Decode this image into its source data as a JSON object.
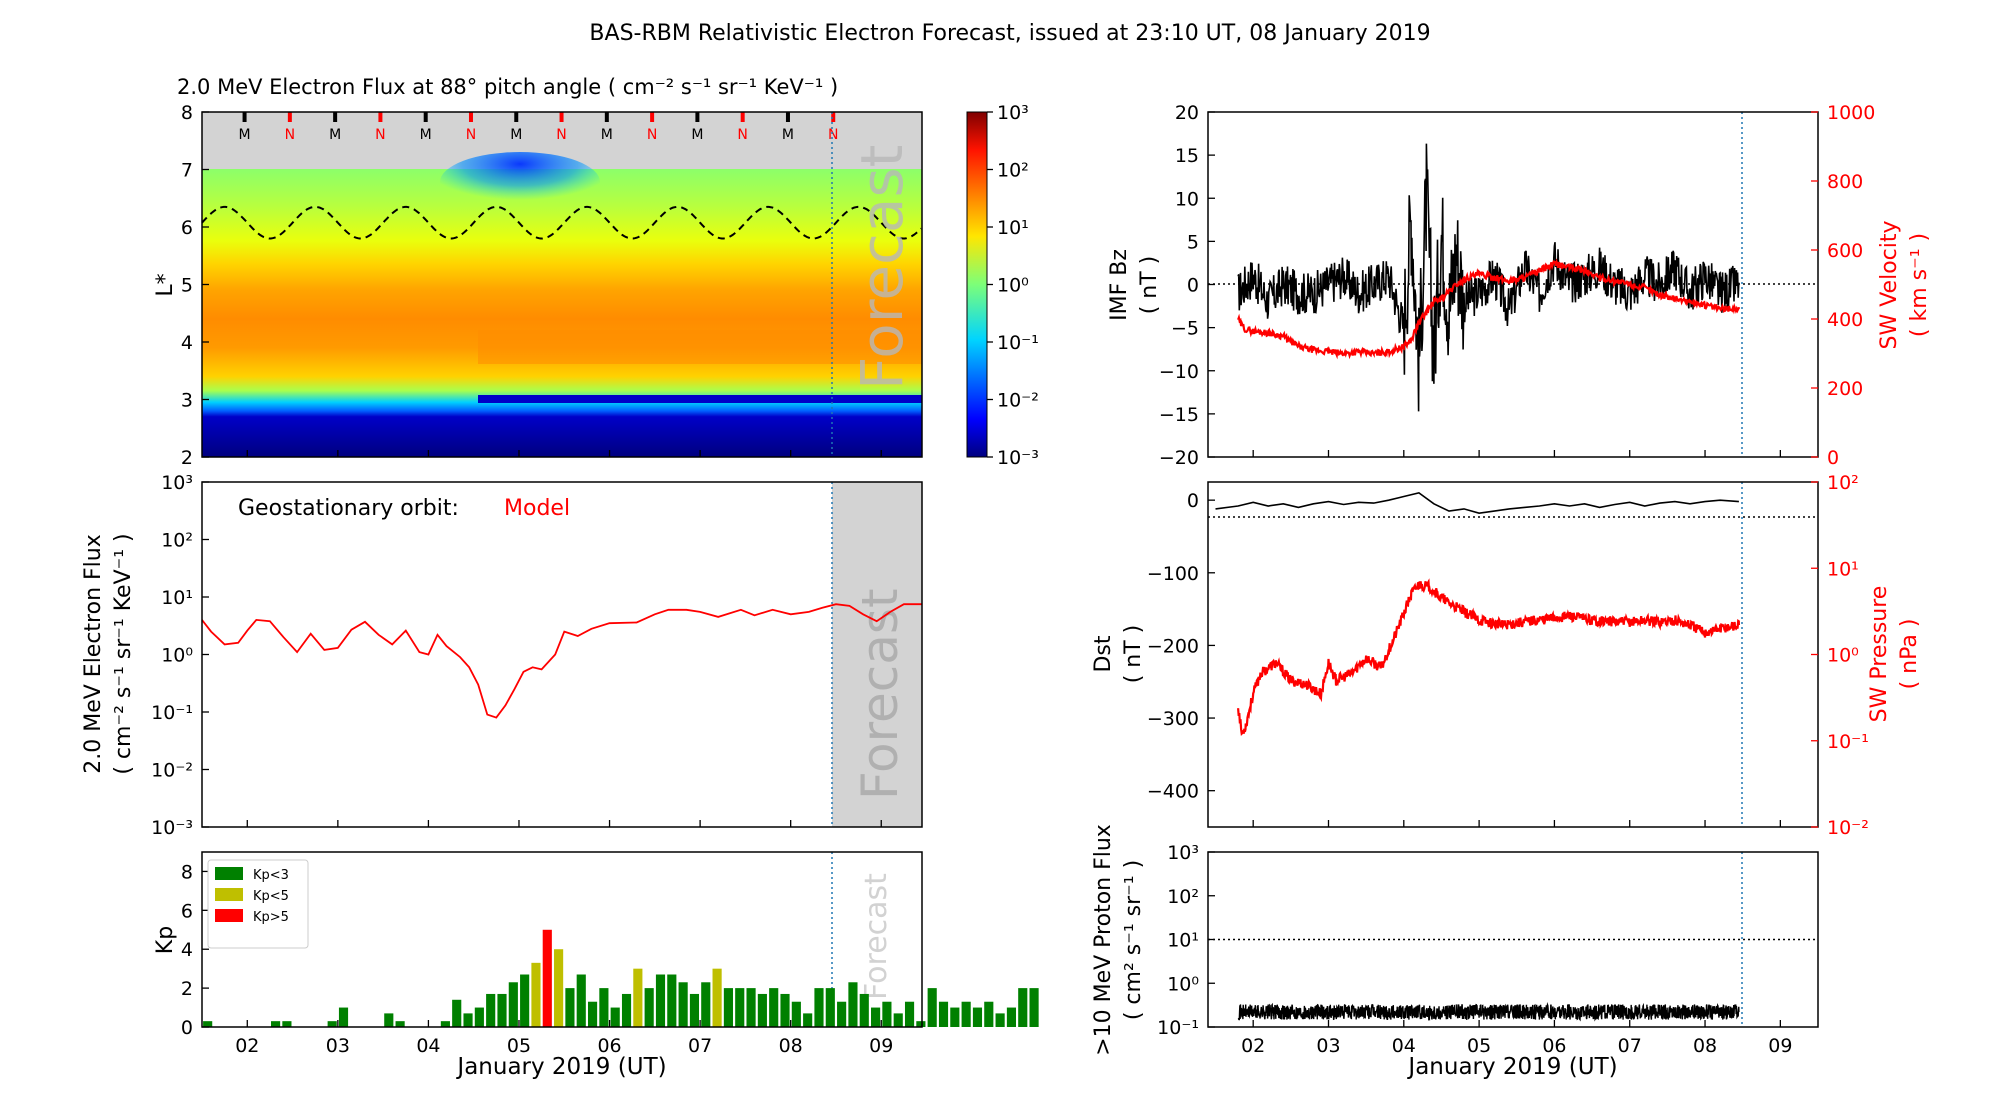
{
  "title": "BAS-RBM Relativistic Electron Forecast, issued at 23:10 UT, 08 January 2019",
  "x_axis_label": "January 2019 (UT)",
  "day_ticks": [
    "02",
    "03",
    "04",
    "05",
    "06",
    "07",
    "08",
    "09"
  ],
  "chart_data": [
    {
      "id": "flux_map",
      "type": "heatmap",
      "title": "2.0 MeV Electron Flux at 88° pitch angle ( cm⁻² s⁻¹ sr⁻¹ KeV⁻¹ )",
      "ylabel": "L*",
      "ylim": [
        2,
        8
      ],
      "yticks": [
        "2",
        "3",
        "4",
        "5",
        "6",
        "7",
        "8"
      ],
      "colorbar": {
        "scale": "log",
        "range": [
          0.001,
          1000
        ],
        "colormap": "jet",
        "ticks": [
          "10⁻³",
          "10⁻²",
          "10⁻¹",
          "10⁰",
          "10¹",
          "10²",
          "10³"
        ]
      },
      "watermark": "Forecast",
      "mlt_markers": [
        "M",
        "N",
        "M",
        "N",
        "M",
        "N",
        "M",
        "N",
        "M",
        "N",
        "M",
        "N",
        "M",
        "N"
      ],
      "mlt_colors": {
        "M": "#000000",
        "N": "#ff0000"
      },
      "geostationary_L": {
        "min": 5.8,
        "max": 6.35,
        "period_days": 1
      }
    },
    {
      "id": "geo_flux",
      "type": "line",
      "ylabel_lines": [
        "2.0 MeV Electron Flux",
        "( cm⁻² s⁻¹ sr⁻¹ KeV⁻¹ )"
      ],
      "yscale": "log",
      "ylim": [
        0.001,
        1000
      ],
      "yticks": [
        "10⁻³",
        "10⁻²",
        "10⁻¹",
        "10⁰",
        "10¹",
        "10²",
        "10³"
      ],
      "annotation": "Geostationary orbit:",
      "annotation_model": "Model",
      "watermark": "Forecast",
      "series": [
        {
          "color": "#ff0000",
          "x": [
            1.5,
            1.6,
            1.75,
            1.9,
            2.0,
            2.1,
            2.25,
            2.4,
            2.55,
            2.7,
            2.85,
            3.0,
            3.15,
            3.3,
            3.45,
            3.6,
            3.75,
            3.9,
            4.0,
            4.1,
            4.2,
            4.35,
            4.45,
            4.55,
            4.65,
            4.75,
            4.85,
            4.95,
            5.05,
            5.15,
            5.25,
            5.4,
            5.5,
            5.65,
            5.8,
            6.0,
            6.3,
            6.5,
            6.65,
            6.85,
            7.0,
            7.2,
            7.45,
            7.6,
            7.8,
            8.0,
            8.2,
            8.35,
            8.5,
            8.65,
            8.8,
            8.95,
            9.1,
            9.25,
            9.45
          ],
          "y": [
            4.0,
            2.5,
            1.5,
            1.6,
            2.6,
            4.0,
            3.8,
            2.0,
            1.1,
            2.3,
            1.2,
            1.3,
            2.7,
            3.7,
            2.2,
            1.5,
            2.6,
            1.1,
            1.0,
            2.2,
            1.4,
            0.9,
            0.6,
            0.3,
            0.09,
            0.08,
            0.13,
            0.25,
            0.5,
            0.6,
            0.55,
            1.0,
            2.5,
            2.1,
            2.8,
            3.5,
            3.6,
            5.0,
            6.0,
            6.0,
            5.5,
            4.5,
            6.0,
            4.8,
            6.0,
            5.0,
            5.5,
            6.5,
            7.5,
            7.0,
            5.0,
            3.8,
            5.5,
            7.5,
            7.5
          ]
        }
      ]
    },
    {
      "id": "kp",
      "type": "bar",
      "ylabel": "Kp",
      "ylim": [
        0,
        9
      ],
      "yticks": [
        "0",
        "2",
        "4",
        "6",
        "8"
      ],
      "watermark": "Forecast",
      "legend": [
        {
          "label": "Kp<3",
          "color": "#008000"
        },
        {
          "label": "Kp<5",
          "color": "#bfbf00"
        },
        {
          "label": "Kp>5",
          "color": "#ff0000"
        }
      ],
      "legend_position": "top-left",
      "bin_days": 0.125,
      "x_start": 1.5,
      "values": [
        0.3,
        0,
        0,
        0,
        0,
        0,
        0.3,
        0.3,
        0,
        0,
        0,
        0.3,
        1.0,
        0,
        0,
        0,
        0.7,
        0.3,
        0,
        0,
        0,
        0.3,
        1.4,
        0.7,
        1.0,
        1.7,
        1.7,
        2.3,
        2.7,
        3.3,
        5.0,
        4.0,
        2.0,
        2.7,
        1.3,
        2.0,
        1.0,
        1.7,
        3.0,
        2.0,
        2.7,
        2.7,
        2.3,
        1.7,
        2.3,
        3.0,
        2.0,
        2.0,
        2.0,
        1.7,
        2.0,
        1.7,
        1.3,
        0.7,
        2.0,
        2.0,
        1.3,
        2.3,
        1.7,
        1.0,
        1.3,
        0.7,
        1.3,
        0.3,
        2.0,
        1.3,
        1.0,
        1.3,
        1.0,
        1.3,
        0.7,
        1.0,
        2.0,
        2.0
      ]
    },
    {
      "id": "imf_sw",
      "type": "line",
      "ylabel_lines": [
        "IMF Bz",
        "( nT )"
      ],
      "ylim": [
        -20,
        20
      ],
      "yticks": [
        "20",
        "15",
        "10",
        "5",
        "0",
        "−5",
        "−10",
        "−15",
        "−20"
      ],
      "y2label_lines": [
        "SW Velocity",
        "( km s⁻¹ )"
      ],
      "y2lim": [
        0,
        1000
      ],
      "y2ticks": [
        "0",
        "200",
        "400",
        "600",
        "800",
        "1000"
      ],
      "series": [
        {
          "name": "IMF Bz",
          "color": "#000000",
          "x": [
            1.8,
            2.0,
            2.2,
            2.4,
            2.6,
            2.8,
            3.0,
            3.2,
            3.4,
            3.6,
            3.8,
            3.9,
            4.0,
            4.1,
            4.2,
            4.3,
            4.4,
            4.5,
            4.6,
            4.7,
            4.8,
            5.0,
            5.2,
            5.4,
            5.6,
            5.8,
            6.0,
            6.2,
            6.4,
            6.6,
            6.8,
            7.0,
            7.2,
            7.4,
            7.6,
            7.8,
            8.0,
            8.2,
            8.45
          ],
          "y": [
            -1,
            1,
            -2,
            0,
            -1,
            -1,
            0,
            1,
            -1,
            0,
            1,
            -2,
            -5,
            8,
            -9,
            10,
            -8,
            6,
            -3,
            4,
            -2,
            -1,
            1,
            -3,
            2,
            -1,
            3,
            0,
            1,
            2,
            0,
            -1,
            1,
            0,
            2,
            -1,
            1,
            -1,
            0
          ]
        },
        {
          "name": "SW Velocity",
          "color": "#ff0000",
          "x": [
            1.8,
            1.85,
            1.9,
            2.0,
            2.2,
            2.4,
            2.6,
            2.8,
            3.0,
            3.2,
            3.4,
            3.6,
            3.8,
            4.0,
            4.1,
            4.2,
            4.3,
            4.4,
            4.5,
            4.6,
            4.7,
            4.85,
            5.0,
            5.2,
            5.4,
            5.6,
            5.8,
            6.0,
            6.2,
            6.4,
            6.6,
            6.8,
            7.0,
            7.2,
            7.4,
            7.6,
            7.8,
            8.0,
            8.2,
            8.45
          ],
          "y": [
            400,
            380,
            370,
            365,
            360,
            350,
            320,
            310,
            305,
            300,
            305,
            300,
            305,
            320,
            340,
            390,
            420,
            450,
            460,
            480,
            500,
            520,
            530,
            520,
            510,
            520,
            540,
            560,
            550,
            540,
            520,
            510,
            500,
            490,
            470,
            460,
            450,
            440,
            430,
            430
          ]
        }
      ]
    },
    {
      "id": "dst_pressure",
      "type": "line",
      "ylabel_lines": [
        "Dst",
        "( nT )"
      ],
      "ylim": [
        -450,
        25
      ],
      "yticks": [
        "0",
        "−100",
        "−200",
        "−300",
        "−400"
      ],
      "y2label_lines": [
        "SW Pressure",
        "( nPa )"
      ],
      "y2scale": "log",
      "y2lim": [
        0.01,
        100
      ],
      "y2ticks": [
        "10⁻²",
        "10⁻¹",
        "10⁰",
        "10¹",
        "10²"
      ],
      "series": [
        {
          "name": "Dst",
          "color": "#000000",
          "x": [
            1.5,
            1.8,
            2.0,
            2.2,
            2.4,
            2.6,
            2.8,
            3.0,
            3.2,
            3.4,
            3.6,
            3.8,
            4.0,
            4.2,
            4.4,
            4.6,
            4.8,
            5.0,
            5.2,
            5.4,
            5.6,
            5.8,
            6.0,
            6.2,
            6.4,
            6.6,
            6.8,
            7.0,
            7.2,
            7.4,
            7.6,
            7.8,
            8.0,
            8.2,
            8.45
          ],
          "y": [
            -12,
            -8,
            -3,
            -8,
            -5,
            -10,
            -5,
            -2,
            -6,
            -3,
            -4,
            0,
            5,
            10,
            -5,
            -15,
            -12,
            -18,
            -15,
            -12,
            -10,
            -8,
            -5,
            -8,
            -5,
            -10,
            -6,
            -3,
            -8,
            -4,
            -2,
            -5,
            -2,
            0,
            -2
          ]
        },
        {
          "name": "SW Pressure",
          "color": "#ff0000",
          "x": [
            1.8,
            1.85,
            1.9,
            2.0,
            2.1,
            2.3,
            2.5,
            2.7,
            2.9,
            3.0,
            3.1,
            3.3,
            3.5,
            3.7,
            3.9,
            4.0,
            4.1,
            4.2,
            4.35,
            4.5,
            4.7,
            5.0,
            5.3,
            5.6,
            5.9,
            6.2,
            6.5,
            6.8,
            7.0,
            7.2,
            7.4,
            7.6,
            7.8,
            8.0,
            8.2,
            8.45
          ],
          "y": [
            0.25,
            0.12,
            0.15,
            0.35,
            0.6,
            0.8,
            0.5,
            0.45,
            0.35,
            0.8,
            0.5,
            0.6,
            0.9,
            0.7,
            1.8,
            3.0,
            5.0,
            6.5,
            6.0,
            4.5,
            3.5,
            2.5,
            2.2,
            2.4,
            2.6,
            2.8,
            2.5,
            2.4,
            2.4,
            2.5,
            2.4,
            2.5,
            2.2,
            1.8,
            2.0,
            2.2
          ]
        }
      ]
    },
    {
      "id": "proton_flux",
      "type": "line",
      "ylabel_lines": [
        ">10 MeV Proton Flux",
        "( cm² s⁻¹ sr⁻¹ )"
      ],
      "yscale": "log",
      "ylim": [
        0.1,
        1000
      ],
      "yticks": [
        "10⁻¹",
        "10⁰",
        "10¹",
        "10²",
        "10³"
      ],
      "threshold": 10,
      "series": [
        {
          "color": "#000000",
          "x": [
            1.8,
            8.45
          ],
          "y": [
            0.22,
            0.22
          ]
        }
      ]
    }
  ]
}
